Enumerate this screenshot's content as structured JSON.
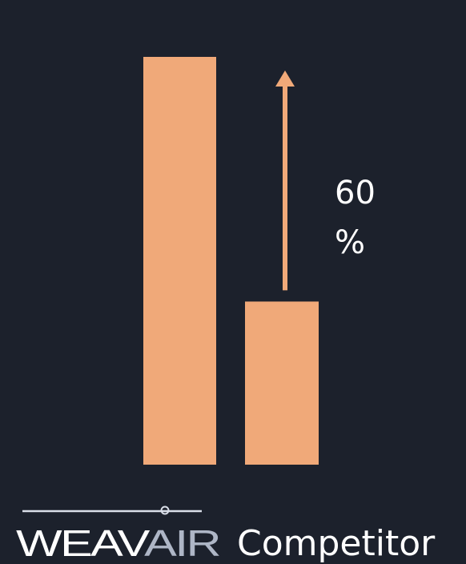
{
  "chart_data": {
    "type": "bar",
    "categories": [
      "WEAVAIR",
      "Competitor"
    ],
    "values": [
      100,
      40
    ],
    "ylim": [
      0,
      100
    ],
    "grid": false,
    "annotation": {
      "text_line1": "60",
      "text_line2": "%",
      "from_category": "Competitor",
      "from_value": 40,
      "to_value": 100
    }
  },
  "logo": {
    "text_main": "WEAV",
    "text_accent": "AIR"
  },
  "colors": {
    "background": "#1c212c",
    "bar": "#f0a979",
    "text": "#ffffff",
    "logo_accent": "#aeb6c6"
  }
}
